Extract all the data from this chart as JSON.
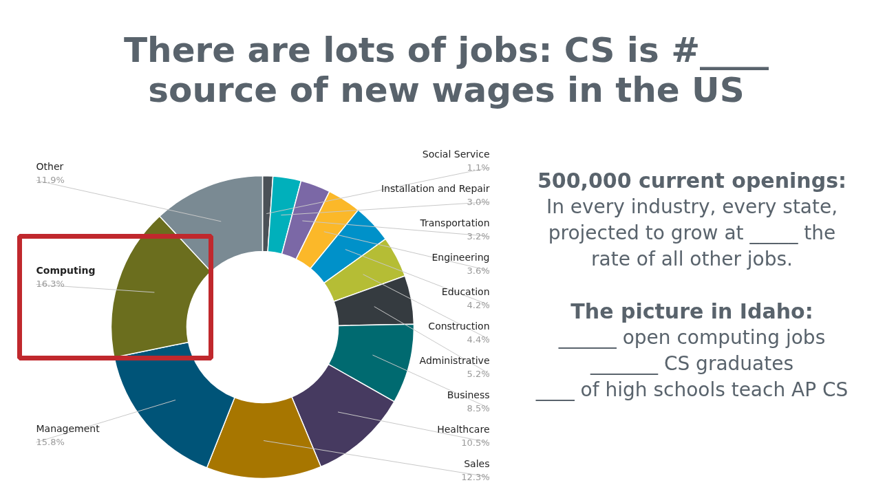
{
  "chart_data": {
    "type": "donut",
    "title": "There are lots of jobs: CS is #____\nsource of new wages in the US",
    "categories": [
      "Social Service",
      "Installation and Repair",
      "Transportation",
      "Engineering",
      "Education",
      "Construction",
      "Administrative",
      "Business",
      "Healthcare",
      "Sales",
      "Management",
      "Computing",
      "Other"
    ],
    "values": [
      1.1,
      3.0,
      3.2,
      3.6,
      4.2,
      4.4,
      5.2,
      8.5,
      10.5,
      12.3,
      15.8,
      16.3,
      11.9
    ],
    "colors": [
      "#4a5157",
      "#00b0bb",
      "#7b68a6",
      "#fbb829",
      "#0091c9",
      "#b5bd35",
      "#353b40",
      "#006a70",
      "#463a60",
      "#a77600",
      "#005478",
      "#6b6e1e",
      "#7a8a93"
    ],
    "value_labels": [
      "1.1%",
      "3.0%",
      "3.2%",
      "3.6%",
      "4.2%",
      "4.4%",
      "5.2%",
      "8.5%",
      "10.5%",
      "12.3%",
      "15.8%",
      "16.3%",
      "11.9%"
    ],
    "annotations": [
      "500,000 current openings:",
      "In every industry, every state,",
      "projected to grow at _____ the",
      "rate of all other jobs.",
      "The picture in Idaho:",
      "______ open computing jobs",
      "_______ CS graduates",
      "____ of high schools teach AP CS"
    ]
  }
}
